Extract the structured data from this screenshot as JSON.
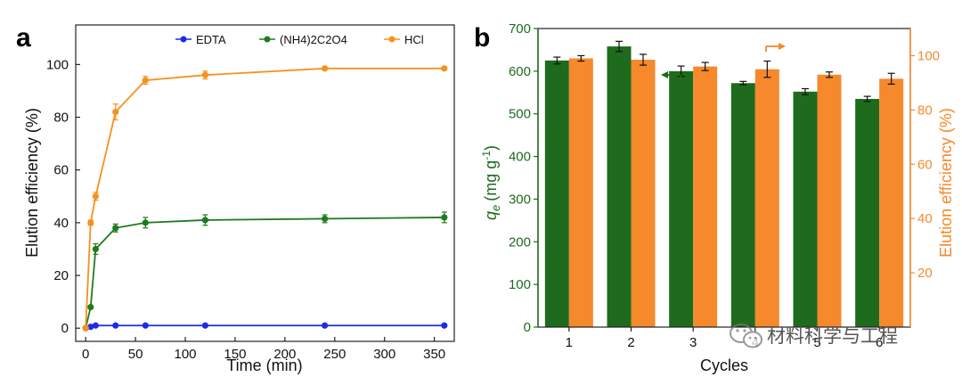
{
  "chart_data": [
    {
      "type": "line",
      "panel_label": "a",
      "xlabel": "Time (min)",
      "ylabel": "Elution efficiency (%)",
      "xlim": [
        -10,
        370
      ],
      "ylim": [
        -5,
        115
      ],
      "xticks": [
        "0",
        "50",
        "100",
        "150",
        "200",
        "250",
        "300",
        "350"
      ],
      "yticks": [
        "0",
        "20",
        "40",
        "60",
        "80",
        "100"
      ],
      "legend_position": "top-right",
      "x": [
        0,
        5,
        10,
        30,
        60,
        120,
        240,
        360
      ],
      "series": [
        {
          "name": "EDTA",
          "color": "#1c2be6",
          "values": [
            0,
            0.5,
            1,
            1,
            1,
            1,
            1,
            1
          ],
          "errors": [
            0,
            0,
            0,
            0,
            0,
            0,
            0,
            0
          ]
        },
        {
          "name": "(NH4)2C2O4",
          "color": "#1f7a1f",
          "values": [
            0,
            8,
            30,
            38,
            40,
            41,
            41.5,
            42
          ],
          "errors": [
            0,
            0,
            2,
            1.5,
            2,
            2,
            1.5,
            2
          ]
        },
        {
          "name": "HCl",
          "color": "#f5921e",
          "values": [
            0,
            40,
            50,
            82,
            94,
            96,
            98.5,
            98.5
          ],
          "errors": [
            0,
            1,
            1.5,
            3,
            1.5,
            1.5,
            0.5,
            0.5
          ]
        }
      ]
    },
    {
      "type": "bar",
      "panel_label": "b",
      "xlabel": "Cycles",
      "categories": [
        "1",
        "2",
        "3",
        "4",
        "5",
        "6"
      ],
      "ylabel_left": "q_e (mg g^-1)",
      "ylabel_left_parts": {
        "q": "q",
        "sub": "e",
        "unit": "(mg g",
        "sup": "-1",
        "close": ")"
      },
      "ylabel_right": "Elution efficiency (%)",
      "ylim_left": [
        0,
        700
      ],
      "ylim_right": [
        0,
        110
      ],
      "yticks_left": [
        "0",
        "100",
        "200",
        "300",
        "400",
        "500",
        "600",
        "700"
      ],
      "yticks_right": [
        "20",
        "40",
        "60",
        "80",
        "100"
      ],
      "series": [
        {
          "name": "q_e",
          "axis": "left",
          "color": "#1e6b1e",
          "values": [
            625,
            658,
            600,
            572,
            552,
            535
          ],
          "errors": [
            8,
            12,
            12,
            4,
            7,
            6
          ]
        },
        {
          "name": "Elution efficiency",
          "axis": "right",
          "color": "#f5892c",
          "values": [
            99,
            98.5,
            96,
            95,
            93,
            91.5
          ],
          "errors": [
            1,
            2,
            1.5,
            3,
            1,
            2
          ]
        }
      ]
    }
  ],
  "watermark": {
    "text": "材料科学与工程",
    "icon": "wechat-icon"
  },
  "colors": {
    "left_axis": "#1e6b1e",
    "right_axis": "#f5892c"
  }
}
